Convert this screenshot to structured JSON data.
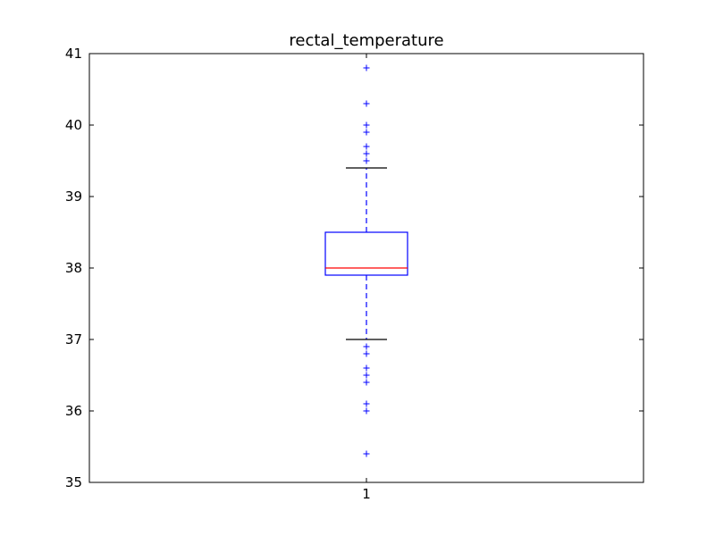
{
  "chart_data": {
    "type": "boxplot",
    "title": "rectal_temperature",
    "xlabel": "",
    "ylabel": "",
    "ylim": [
      35,
      41
    ],
    "yticks": [
      "35",
      "36",
      "37",
      "38",
      "39",
      "40",
      "41"
    ],
    "categories": [
      "1"
    ],
    "boxes": [
      {
        "category": "1",
        "whisker_low": 37.0,
        "q1": 37.9,
        "median": 38.0,
        "q3": 38.5,
        "whisker_high": 39.4,
        "outliers": [
          39.5,
          39.5,
          39.6,
          39.7,
          39.9,
          40.0,
          40.3,
          40.3,
          40.8,
          36.9,
          36.8,
          36.6,
          36.5,
          36.5,
          36.4,
          36.1,
          36.0,
          35.4
        ]
      }
    ],
    "colors": {
      "box": "#0000ff",
      "median": "#ff0000",
      "whisker": "#0000ff",
      "cap": "#000000",
      "outlier": "#0000ff",
      "axes": "#000000"
    }
  }
}
